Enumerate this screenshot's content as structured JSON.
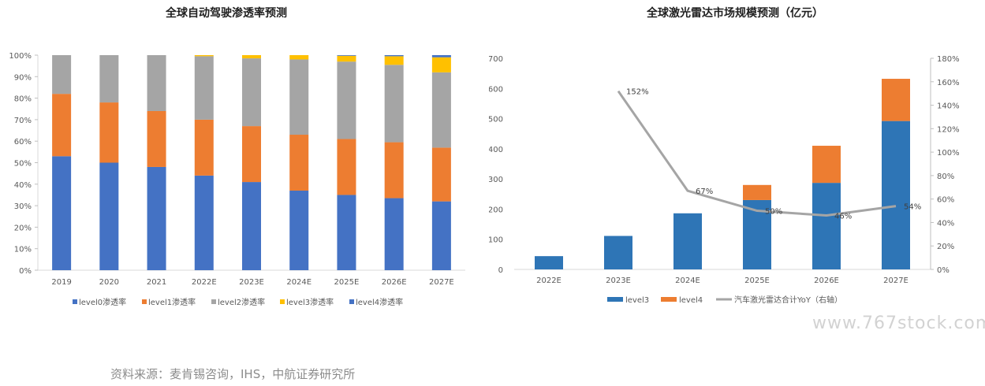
{
  "chart_data": [
    {
      "type": "bar",
      "stacked": true,
      "title": "全球自动驾驶渗透率预测",
      "categories": [
        "2019",
        "2020",
        "2021",
        "2022E",
        "2023E",
        "2024E",
        "2025E",
        "2026E",
        "2027E"
      ],
      "ylim": [
        0,
        100
      ],
      "yticks": [
        "0%",
        "10%",
        "20%",
        "30%",
        "40%",
        "50%",
        "60%",
        "70%",
        "80%",
        "90%",
        "100%"
      ],
      "grid": false,
      "legend_position": "bottom",
      "series": [
        {
          "name": "level0渗透率",
          "color": "#4472c4",
          "values": [
            53,
            50,
            48,
            44,
            41,
            37,
            35,
            33.5,
            32
          ]
        },
        {
          "name": "level1渗透率",
          "color": "#ed7d31",
          "values": [
            29,
            28,
            26,
            26,
            26,
            26,
            26,
            26,
            25
          ]
        },
        {
          "name": "level2渗透率",
          "color": "#a5a5a5",
          "values": [
            18,
            22,
            26,
            29.5,
            31.5,
            35,
            36,
            36,
            35
          ]
        },
        {
          "name": "level3渗透率",
          "color": "#ffc000",
          "values": [
            0,
            0,
            0,
            0.5,
            1.5,
            2,
            2.7,
            4,
            7
          ]
        },
        {
          "name": "level4渗透率",
          "color": "#4472c4",
          "values": [
            0,
            0,
            0,
            0,
            0,
            0,
            0.3,
            0.5,
            1
          ]
        }
      ]
    },
    {
      "type": "bar",
      "stacked": true,
      "title": "全球激光雷达市场规模预测（亿元）",
      "categories": [
        "2022E",
        "2023E",
        "2024E",
        "2025E",
        "2026E",
        "2027E"
      ],
      "ylim": [
        0,
        700
      ],
      "yticks": [
        "0",
        "100",
        "200",
        "300",
        "400",
        "500",
        "600",
        "700"
      ],
      "y2lim": [
        0,
        180
      ],
      "y2ticks": [
        "0%",
        "20%",
        "40%",
        "60%",
        "80%",
        "100%",
        "120%",
        "140%",
        "160%",
        "180%"
      ],
      "grid": false,
      "legend_position": "bottom",
      "series": [
        {
          "name": "level3",
          "color": "#2e75b6",
          "values": [
            44,
            111,
            186,
            230,
            287,
            492
          ]
        },
        {
          "name": "level4",
          "color": "#ed7d31",
          "values": [
            0,
            0,
            0,
            50,
            123,
            140
          ]
        }
      ],
      "line_series": {
        "name": "汽车激光雷达合计YoY（右轴）",
        "color": "#a5a5a5",
        "values": [
          null,
          152,
          67,
          50,
          46,
          54
        ],
        "labels": [
          "",
          "152%",
          "67%",
          "50%",
          "46%",
          "54%"
        ]
      }
    }
  ],
  "watermark": "www.767stock.com",
  "source": "资料来源：麦肯锡咨询，IHS，中航证券研究所"
}
